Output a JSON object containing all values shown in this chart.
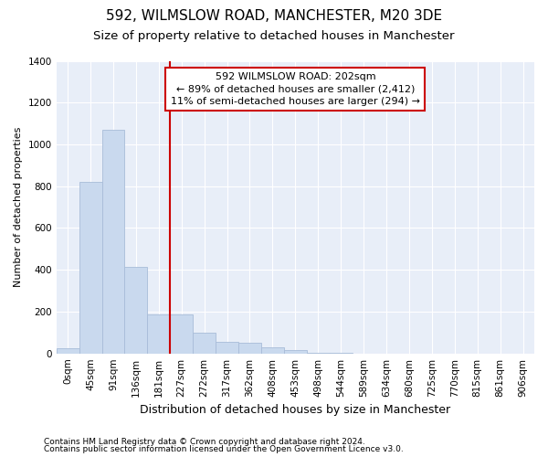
{
  "title1": "592, WILMSLOW ROAD, MANCHESTER, M20 3DE",
  "title2": "Size of property relative to detached houses in Manchester",
  "xlabel": "Distribution of detached houses by size in Manchester",
  "ylabel": "Number of detached properties",
  "categories": [
    "0sqm",
    "45sqm",
    "91sqm",
    "136sqm",
    "181sqm",
    "227sqm",
    "272sqm",
    "317sqm",
    "362sqm",
    "408sqm",
    "453sqm",
    "498sqm",
    "544sqm",
    "589sqm",
    "634sqm",
    "680sqm",
    "725sqm",
    "770sqm",
    "815sqm",
    "861sqm",
    "906sqm"
  ],
  "values": [
    25,
    820,
    1070,
    415,
    185,
    185,
    100,
    55,
    50,
    30,
    15,
    5,
    2,
    0,
    0,
    0,
    0,
    0,
    0,
    0,
    0
  ],
  "bar_color": "#c9d9ee",
  "bar_edge_color": "#a8bcd8",
  "vline_x": 4.5,
  "vline_color": "#cc0000",
  "annotation_text": "592 WILMSLOW ROAD: 202sqm\n← 89% of detached houses are smaller (2,412)\n11% of semi-detached houses are larger (294) →",
  "annotation_box_color": "#cc0000",
  "ylim": [
    0,
    1400
  ],
  "yticks": [
    0,
    200,
    400,
    600,
    800,
    1000,
    1200,
    1400
  ],
  "footer1": "Contains HM Land Registry data © Crown copyright and database right 2024.",
  "footer2": "Contains public sector information licensed under the Open Government Licence v3.0.",
  "fig_bg_color": "#ffffff",
  "axes_bg_color": "#e8eef8",
  "grid_color": "#ffffff",
  "title1_fontsize": 11,
  "title2_fontsize": 9.5,
  "xlabel_fontsize": 9,
  "ylabel_fontsize": 8,
  "tick_fontsize": 7.5,
  "annot_fontsize": 8,
  "footer_fontsize": 6.5
}
